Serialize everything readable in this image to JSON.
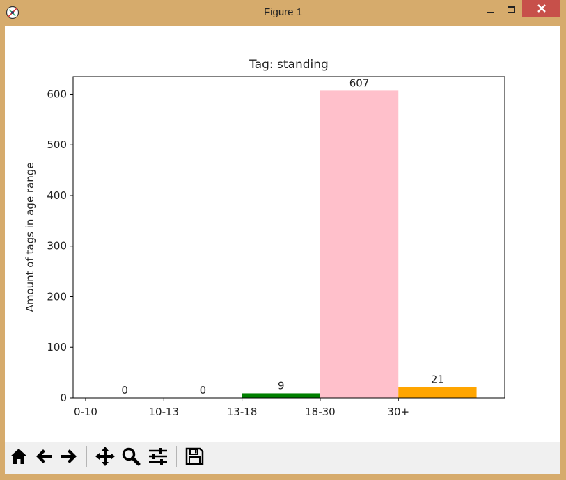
{
  "window": {
    "title": "Figure 1",
    "accent": "#d6ab6c",
    "close_color": "#c7504a"
  },
  "toolbar": {
    "buttons": [
      {
        "name": "home-icon",
        "label": "Home"
      },
      {
        "name": "back-icon",
        "label": "Back"
      },
      {
        "name": "forward-icon",
        "label": "Forward"
      },
      {
        "name": "pan-icon",
        "label": "Pan"
      },
      {
        "name": "zoom-icon",
        "label": "Zoom"
      },
      {
        "name": "configure-subplots-icon",
        "label": "Configure subplots"
      },
      {
        "name": "save-icon",
        "label": "Save"
      }
    ]
  },
  "chart_data": {
    "type": "bar",
    "title": "Tag: standing",
    "xlabel": "",
    "ylabel": "Amount of tags in age range",
    "categories": [
      "0-10",
      "10-13",
      "13-18",
      "18-30",
      "30+"
    ],
    "values": [
      0,
      0,
      9,
      607,
      21
    ],
    "value_labels": [
      "0",
      "0",
      "9",
      "607",
      "21"
    ],
    "colors": [
      "#1f77b4",
      "#ff0000",
      "#008000",
      "#ffc0cb",
      "#ffa500"
    ],
    "ylim": [
      0,
      635
    ],
    "yticks": [
      "0",
      "100",
      "200",
      "300",
      "400",
      "500",
      "600"
    ],
    "grid": false
  }
}
